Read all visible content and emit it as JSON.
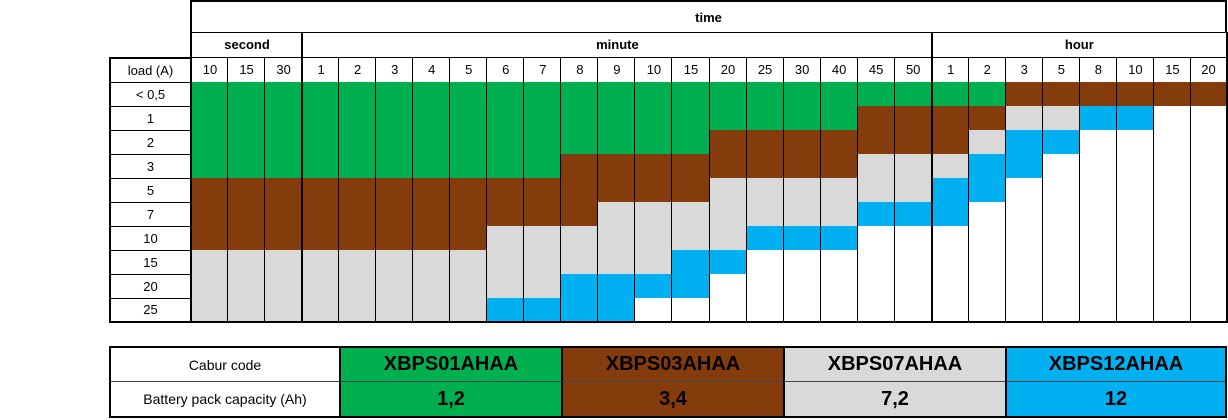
{
  "header": {
    "title": "time",
    "row_header": "load (A)",
    "groups": [
      {
        "label": "second",
        "columns": [
          "10",
          "15",
          "30"
        ]
      },
      {
        "label": "minute",
        "columns": [
          "1",
          "2",
          "3",
          "4",
          "5",
          "6",
          "7",
          "8",
          "9",
          "10",
          "15",
          "20",
          "25",
          "30",
          "40",
          "45",
          "50"
        ]
      },
      {
        "label": "hour",
        "columns": [
          "1",
          "2",
          "3",
          "5",
          "8",
          "10",
          "15",
          "20"
        ]
      }
    ]
  },
  "rows": [
    {
      "load": "< 0,5",
      "colors": [
        "#00b050",
        "#00b050",
        "#00b050",
        "#00b050",
        "#00b050",
        "#00b050",
        "#00b050",
        "#00b050",
        "#00b050",
        "#00b050",
        "#00b050",
        "#00b050",
        "#00b050",
        "#00b050",
        "#00b050",
        "#00b050",
        "#00b050",
        "#00b050",
        "#00b050",
        "#00b050",
        "#00b050",
        "#00b050",
        "#843c0c",
        "#843c0c",
        "#843c0c",
        "#843c0c",
        "#843c0c",
        "#843c0c"
      ]
    },
    {
      "load": "1",
      "colors": [
        "#00b050",
        "#00b050",
        "#00b050",
        "#00b050",
        "#00b050",
        "#00b050",
        "#00b050",
        "#00b050",
        "#00b050",
        "#00b050",
        "#00b050",
        "#00b050",
        "#00b050",
        "#00b050",
        "#00b050",
        "#00b050",
        "#00b050",
        "#00b050",
        "#843c0c",
        "#843c0c",
        "#843c0c",
        "#843c0c",
        "#d9d9d9",
        "#d9d9d9",
        "#00b0f0",
        "#00b0f0",
        "#ffffff",
        "#ffffff"
      ]
    },
    {
      "load": "2",
      "colors": [
        "#00b050",
        "#00b050",
        "#00b050",
        "#00b050",
        "#00b050",
        "#00b050",
        "#00b050",
        "#00b050",
        "#00b050",
        "#00b050",
        "#00b050",
        "#00b050",
        "#00b050",
        "#00b050",
        "#843c0c",
        "#843c0c",
        "#843c0c",
        "#843c0c",
        "#843c0c",
        "#843c0c",
        "#843c0c",
        "#d9d9d9",
        "#00b0f0",
        "#00b0f0",
        "#ffffff",
        "#ffffff",
        "#ffffff",
        "#ffffff"
      ]
    },
    {
      "load": "3",
      "colors": [
        "#00b050",
        "#00b050",
        "#00b050",
        "#00b050",
        "#00b050",
        "#00b050",
        "#00b050",
        "#00b050",
        "#00b050",
        "#00b050",
        "#843c0c",
        "#843c0c",
        "#843c0c",
        "#843c0c",
        "#843c0c",
        "#843c0c",
        "#843c0c",
        "#843c0c",
        "#d9d9d9",
        "#d9d9d9",
        "#d9d9d9",
        "#00b0f0",
        "#00b0f0",
        "#ffffff",
        "#ffffff",
        "#ffffff",
        "#ffffff",
        "#ffffff"
      ]
    },
    {
      "load": "5",
      "colors": [
        "#843c0c",
        "#843c0c",
        "#843c0c",
        "#843c0c",
        "#843c0c",
        "#843c0c",
        "#843c0c",
        "#843c0c",
        "#843c0c",
        "#843c0c",
        "#843c0c",
        "#843c0c",
        "#843c0c",
        "#843c0c",
        "#d9d9d9",
        "#d9d9d9",
        "#d9d9d9",
        "#d9d9d9",
        "#d9d9d9",
        "#d9d9d9",
        "#00b0f0",
        "#00b0f0",
        "#ffffff",
        "#ffffff",
        "#ffffff",
        "#ffffff",
        "#ffffff",
        "#ffffff"
      ]
    },
    {
      "load": "7",
      "colors": [
        "#843c0c",
        "#843c0c",
        "#843c0c",
        "#843c0c",
        "#843c0c",
        "#843c0c",
        "#843c0c",
        "#843c0c",
        "#843c0c",
        "#843c0c",
        "#843c0c",
        "#d9d9d9",
        "#d9d9d9",
        "#d9d9d9",
        "#d9d9d9",
        "#d9d9d9",
        "#d9d9d9",
        "#d9d9d9",
        "#00b0f0",
        "#00b0f0",
        "#00b0f0",
        "#ffffff",
        "#ffffff",
        "#ffffff",
        "#ffffff",
        "#ffffff",
        "#ffffff",
        "#ffffff"
      ]
    },
    {
      "load": "10",
      "colors": [
        "#843c0c",
        "#843c0c",
        "#843c0c",
        "#843c0c",
        "#843c0c",
        "#843c0c",
        "#843c0c",
        "#843c0c",
        "#d9d9d9",
        "#d9d9d9",
        "#d9d9d9",
        "#d9d9d9",
        "#d9d9d9",
        "#d9d9d9",
        "#d9d9d9",
        "#00b0f0",
        "#00b0f0",
        "#00b0f0",
        "#ffffff",
        "#ffffff",
        "#ffffff",
        "#ffffff",
        "#ffffff",
        "#ffffff",
        "#ffffff",
        "#ffffff",
        "#ffffff",
        "#ffffff"
      ]
    },
    {
      "load": "15",
      "colors": [
        "#d9d9d9",
        "#d9d9d9",
        "#d9d9d9",
        "#d9d9d9",
        "#d9d9d9",
        "#d9d9d9",
        "#d9d9d9",
        "#d9d9d9",
        "#d9d9d9",
        "#d9d9d9",
        "#d9d9d9",
        "#d9d9d9",
        "#d9d9d9",
        "#00b0f0",
        "#00b0f0",
        "#ffffff",
        "#ffffff",
        "#ffffff",
        "#ffffff",
        "#ffffff",
        "#ffffff",
        "#ffffff",
        "#ffffff",
        "#ffffff",
        "#ffffff",
        "#ffffff",
        "#ffffff",
        "#ffffff"
      ]
    },
    {
      "load": "20",
      "colors": [
        "#d9d9d9",
        "#d9d9d9",
        "#d9d9d9",
        "#d9d9d9",
        "#d9d9d9",
        "#d9d9d9",
        "#d9d9d9",
        "#d9d9d9",
        "#d9d9d9",
        "#d9d9d9",
        "#00b0f0",
        "#00b0f0",
        "#00b0f0",
        "#00b0f0",
        "#ffffff",
        "#ffffff",
        "#ffffff",
        "#ffffff",
        "#ffffff",
        "#ffffff",
        "#ffffff",
        "#ffffff",
        "#ffffff",
        "#ffffff",
        "#ffffff",
        "#ffffff",
        "#ffffff",
        "#ffffff"
      ]
    },
    {
      "load": "25",
      "colors": [
        "#d9d9d9",
        "#d9d9d9",
        "#d9d9d9",
        "#d9d9d9",
        "#d9d9d9",
        "#d9d9d9",
        "#d9d9d9",
        "#d9d9d9",
        "#00b0f0",
        "#00b0f0",
        "#00b0f0",
        "#00b0f0",
        "#ffffff",
        "#ffffff",
        "#ffffff",
        "#ffffff",
        "#ffffff",
        "#ffffff",
        "#ffffff",
        "#ffffff",
        "#ffffff",
        "#ffffff",
        "#ffffff",
        "#ffffff",
        "#ffffff",
        "#ffffff",
        "#ffffff",
        "#ffffff"
      ]
    }
  ],
  "legend": {
    "code_label": "Cabur code",
    "capacity_label": "Battery pack capacity (Ah)",
    "items": [
      {
        "code": "XBPS01AHAA",
        "capacity": "1,2",
        "color": "#00b050"
      },
      {
        "code": "XBPS03AHAA",
        "capacity": "3,4",
        "color": "#843c0c"
      },
      {
        "code": "XBPS07AHAA",
        "capacity": "7,2",
        "color": "#d9d9d9"
      },
      {
        "code": "XBPS12AHAA",
        "capacity": "12",
        "color": "#00b0f0"
      }
    ]
  }
}
